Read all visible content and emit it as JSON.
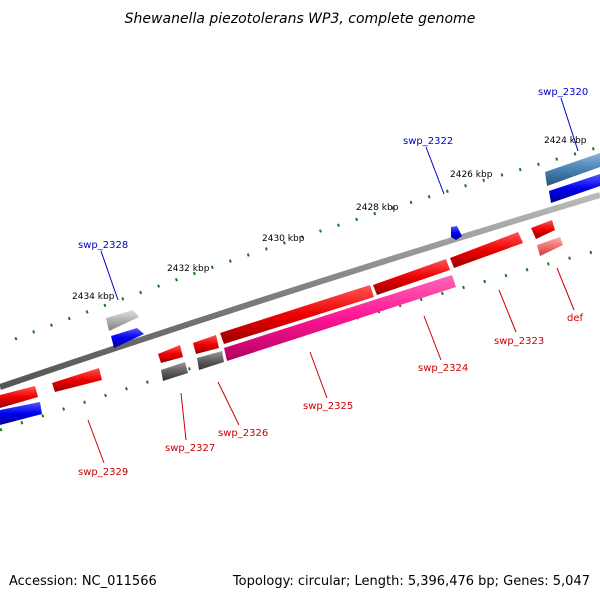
{
  "title": "Shewanella piezotolerans WP3, complete genome",
  "footer": {
    "accession": "Accession: NC_011566",
    "summary": "Topology: circular; Length: 5,396,476 bp; Genes: 5,047"
  },
  "ticks": [
    {
      "label": "2424 kbp"
    },
    {
      "label": "2426 kbp"
    },
    {
      "label": "2428 kbp"
    },
    {
      "label": "2430 kbp"
    },
    {
      "label": "2432 kbp"
    },
    {
      "label": "2434 kbp"
    }
  ],
  "genes_forward": [
    {
      "name": "swp_2320",
      "color": "#0000cc"
    },
    {
      "name": "swp_2322",
      "color": "#0000cc"
    },
    {
      "name": "swp_2328",
      "color": "#0000cc"
    }
  ],
  "genes_reverse": [
    {
      "name": "def",
      "color": "#cc0000"
    },
    {
      "name": "swp_2323",
      "color": "#cc0000"
    },
    {
      "name": "swp_2324",
      "color": "#cc0000"
    },
    {
      "name": "swp_2325",
      "color": "#cc0000"
    },
    {
      "name": "swp_2326",
      "color": "#cc0000"
    },
    {
      "name": "swp_2327",
      "color": "#cc0000"
    },
    {
      "name": "swp_2329",
      "color": "#cc0000"
    }
  ],
  "colors": {
    "backbone": "#808080",
    "cds_red": "#ee0000",
    "cds_pink": "#ff1493",
    "cds_blue": "#0000ee",
    "cds_steel": "#4682b4",
    "cds_gray": "#606060",
    "cds_lightgray": "#b0b0b0",
    "tick": "#1a7a1a",
    "label_forward": "#0000cc",
    "label_reverse": "#cc0000"
  }
}
